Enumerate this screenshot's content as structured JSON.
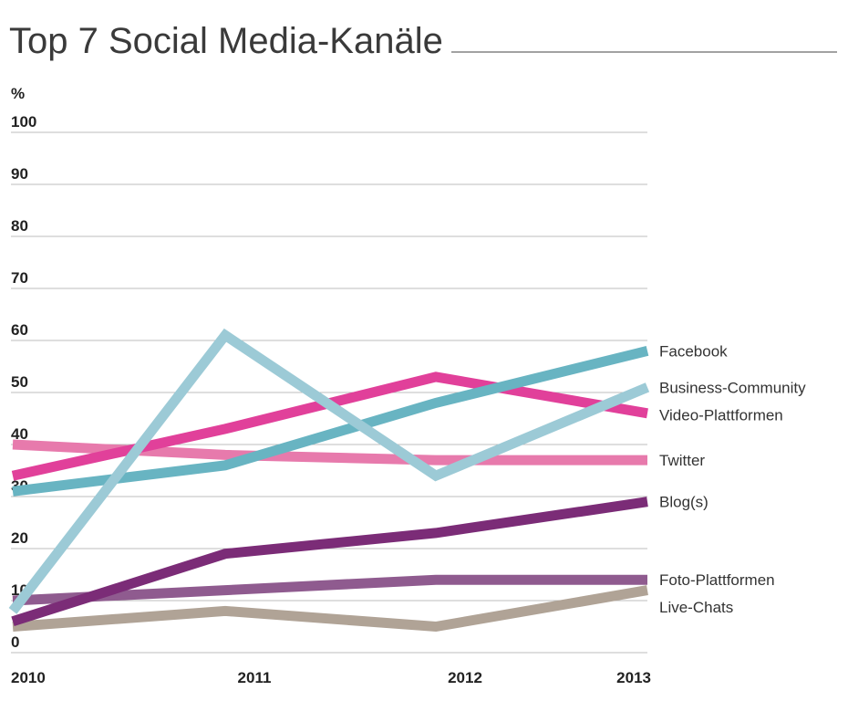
{
  "chart_data": {
    "type": "line",
    "title": "Top 7 Social Media-Kanäle",
    "ylabel": "%",
    "xlabel": "",
    "categories": [
      "2010",
      "2011",
      "2012",
      "2013"
    ],
    "ylim": [
      0,
      100
    ],
    "yticks": [
      "0",
      "10",
      "20",
      "30",
      "40",
      "50",
      "60",
      "70",
      "80",
      "90",
      "100"
    ],
    "grid": true,
    "legend_placement": "right",
    "series": [
      {
        "name": "Twitter",
        "color": "#e77aac",
        "values": [
          40,
          38,
          37,
          37
        ]
      },
      {
        "name": "Live-Chats",
        "color": "#b0a396",
        "values": [
          5,
          8,
          5,
          12
        ]
      },
      {
        "name": "Foto-Plattformen",
        "color": "#8f5b8f",
        "values": [
          10,
          12,
          14,
          14
        ]
      },
      {
        "name": "Blog(s)",
        "color": "#7b2c77",
        "values": [
          6,
          19,
          23,
          29
        ]
      },
      {
        "name": "Video-Plattformen",
        "color": "#e1409a",
        "values": [
          34,
          43,
          53,
          46
        ]
      },
      {
        "name": "Facebook",
        "color": "#68b4c2",
        "values": [
          31,
          36,
          48,
          58
        ]
      },
      {
        "name": "Business-Community",
        "color": "#9ccad6",
        "values": [
          8,
          61,
          34,
          51
        ]
      }
    ]
  }
}
